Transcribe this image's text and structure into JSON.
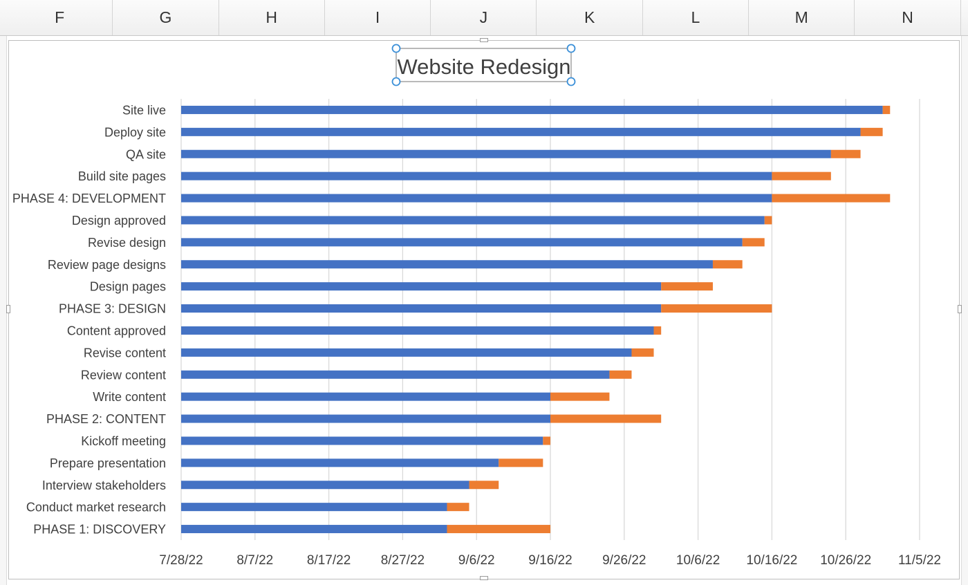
{
  "spreadsheet": {
    "columns": [
      "F",
      "G",
      "H",
      "I",
      "J",
      "K",
      "L",
      "M",
      "N"
    ]
  },
  "colors": {
    "start_series": "#4472c4",
    "duration_series": "#ed7d31",
    "gridline": "#d9d9d9",
    "title_selection": "#3a8fd8"
  },
  "chart_data": {
    "type": "bar",
    "orientation": "horizontal",
    "stacked": true,
    "title": "Website Redesign",
    "title_selected": true,
    "xlabel": "",
    "ylabel": "",
    "x_axis_type": "date",
    "xlim": [
      "2022-07-28",
      "2022-11-05"
    ],
    "x_ticks": [
      "7/28/22",
      "8/7/22",
      "8/17/22",
      "8/27/22",
      "9/6/22",
      "9/16/22",
      "9/26/22",
      "10/6/22",
      "10/16/22",
      "10/26/22",
      "11/5/22"
    ],
    "x_tick_dates": [
      "2022-07-28",
      "2022-08-07",
      "2022-08-17",
      "2022-08-27",
      "2022-09-06",
      "2022-09-16",
      "2022-09-26",
      "2022-10-06",
      "2022-10-16",
      "2022-10-26",
      "2022-11-05"
    ],
    "grid": true,
    "legend": "none",
    "categories": [
      "Site live",
      "Deploy site",
      "QA site",
      "Build site pages",
      "PHASE 4: DEVELOPMENT",
      "Design approved",
      "Revise design",
      "Review page designs",
      "Design pages",
      "PHASE 3: DESIGN",
      "Content approved",
      "Revise content",
      "Review content",
      "Write content",
      "PHASE 2: CONTENT",
      "Kickoff meeting",
      "Prepare presentation",
      "Interview stakeholders",
      "Conduct market research",
      "PHASE 1: DISCOVERY"
    ],
    "series": [
      {
        "role": "start-date",
        "values": [
          "2022-10-31",
          "2022-10-28",
          "2022-10-24",
          "2022-10-16",
          "2022-10-16",
          "2022-10-15",
          "2022-10-12",
          "2022-10-08",
          "2022-10-01",
          "2022-10-01",
          "2022-09-30",
          "2022-09-27",
          "2022-09-24",
          "2022-09-16",
          "2022-09-16",
          "2022-09-15",
          "2022-09-09",
          "2022-09-05",
          "2022-09-02",
          "2022-09-02"
        ]
      },
      {
        "role": "duration-days",
        "values": [
          1,
          3,
          4,
          8,
          16,
          1,
          3,
          4,
          7,
          15,
          1,
          3,
          3,
          8,
          15,
          1,
          6,
          4,
          3,
          14
        ]
      }
    ]
  }
}
